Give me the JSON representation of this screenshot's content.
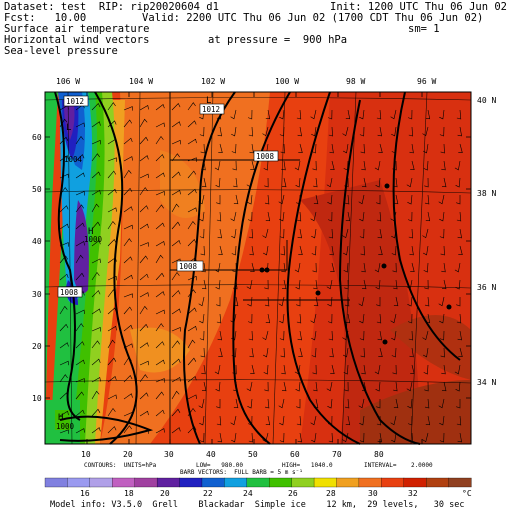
{
  "header": {
    "dataset": "Dataset: test  RIP: rip20020604 d1",
    "init": "Init: 1200 UTC Thu 06 Jun 02",
    "fcst": "Fcst:   10.00",
    "valid": "Valid: 2200 UTC Thu 06 Jun 02 (1700 CDT Thu 06 Jun 02)",
    "field1": "Surface air temperature",
    "sm": "sm= 1",
    "field2": "Horizontal wind vectors",
    "pressure": "at pressure =  900 hPa",
    "field3": "Sea-level pressure"
  },
  "top_lon_labels": [
    "106 W",
    "104 W",
    "102 W",
    "100 W",
    "98 W",
    "96 W"
  ],
  "right_lat_labels": [
    "40 N",
    "38 N",
    "36 N",
    "34 N"
  ],
  "left_ticks": [
    "60",
    "50",
    "40",
    "30",
    "20",
    "10"
  ],
  "bottom_ticks": [
    "10",
    "20",
    "30",
    "40",
    "50",
    "60",
    "70",
    "80"
  ],
  "contour_labels": [
    "1012",
    "1012",
    "1008",
    "1008",
    "1008",
    "1000",
    "1004",
    "1000"
  ],
  "high_low_marks": [
    "L",
    "H",
    "H",
    "L"
  ],
  "contour_info": {
    "contours": "CONTOURS:  UNITS=hPa",
    "low": "LOW=   980.00",
    "high": "HIGH=   1040.0",
    "interval": "INTERVAL=    2.0000"
  },
  "barb_info": "BARB VECTORS:  FULL BARB = 5 m s⁻¹",
  "legend": {
    "colors": [
      "#8080e0",
      "#9a9af0",
      "#b0a0e8",
      "#c060c0",
      "#a040a0",
      "#6020a0",
      "#2020c0",
      "#1060d0",
      "#10a0e0",
      "#20c040",
      "#40c000",
      "#90d020",
      "#f0e000",
      "#f0a020",
      "#f07020",
      "#e84010",
      "#d02000",
      "#b04010",
      "#904020"
    ],
    "labels": [
      "16",
      "18",
      "20",
      "22",
      "24",
      "26",
      "28",
      "30",
      "32"
    ],
    "unit": "°C"
  },
  "footer": "Model info: V3.5.0  Grell    Blackadar  Simple ice    12 km,  29 levels,   30 sec"
}
